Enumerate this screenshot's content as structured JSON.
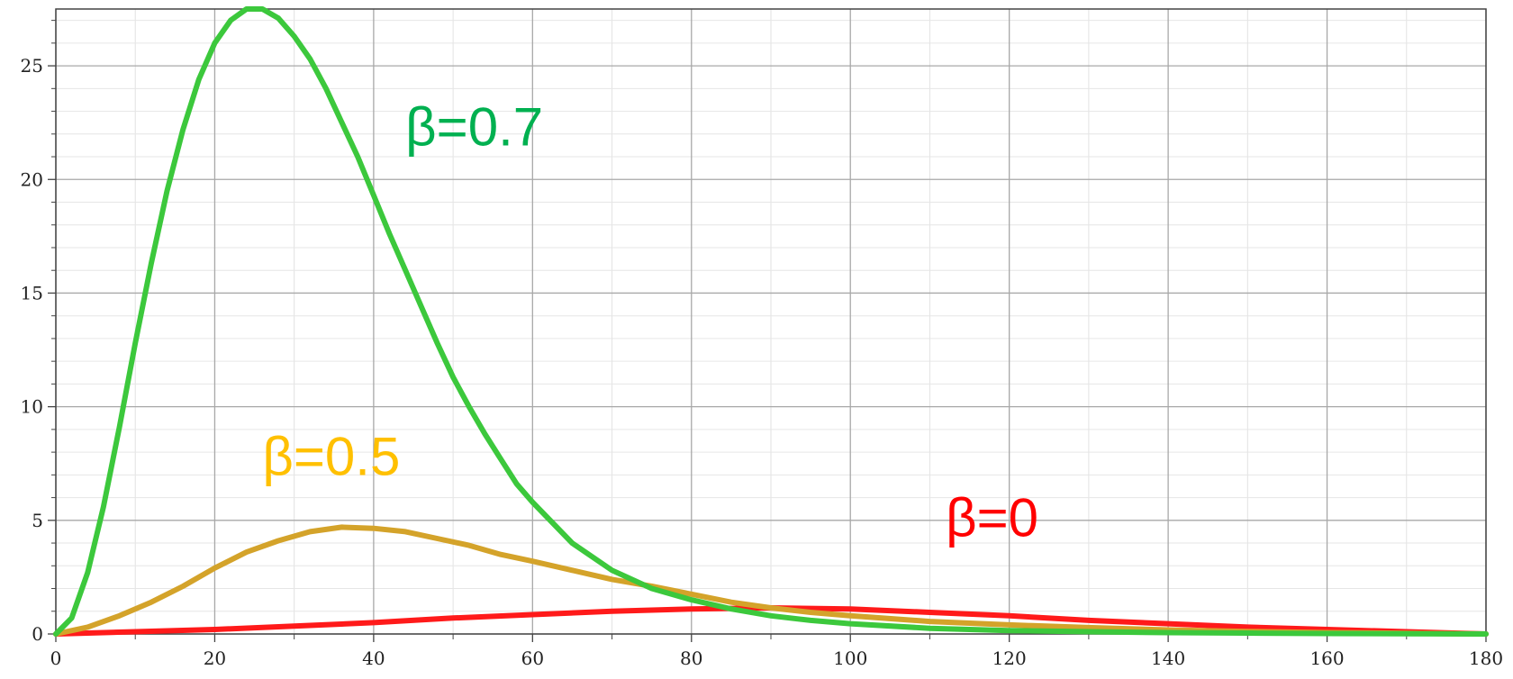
{
  "chart_data": {
    "type": "line",
    "title": "",
    "xlabel": "",
    "ylabel": "",
    "xlim": [
      0,
      180
    ],
    "ylim": [
      0,
      27.5
    ],
    "x_ticks": [
      0,
      20,
      40,
      60,
      80,
      100,
      120,
      140,
      160,
      180
    ],
    "y_ticks": [
      0,
      5,
      10,
      15,
      20,
      25
    ],
    "x_tick_labels": [
      "0",
      "20",
      "40",
      "60",
      "80",
      "100",
      "120",
      "140",
      "160",
      "180"
    ],
    "y_tick_labels": [
      "0",
      "5",
      "10",
      "15",
      "20",
      "25"
    ],
    "grid": true,
    "legend": "none",
    "annotations": [
      {
        "text": "β=0.7",
        "x": 44,
        "y": 21.5,
        "color": "#00b050"
      },
      {
        "text": "β=0.5",
        "x": 26,
        "y": 7.0,
        "color": "#ffc000"
      },
      {
        "text": "β=0",
        "x": 112,
        "y": 4.3,
        "color": "#ff0000"
      }
    ],
    "series": [
      {
        "color": "#3cc83c",
        "x": [
          0,
          2,
          4,
          6,
          8,
          10,
          12,
          14,
          16,
          18,
          20,
          22,
          24,
          26,
          28,
          30,
          32,
          34,
          36,
          38,
          40,
          42,
          44,
          46,
          48,
          50,
          52,
          54,
          56,
          58,
          60,
          65,
          70,
          75,
          80,
          85,
          90,
          95,
          100,
          110,
          120,
          130,
          140,
          150,
          160,
          170,
          180
        ],
        "y": [
          0,
          0.7,
          2.7,
          5.6,
          9.1,
          12.8,
          16.3,
          19.5,
          22.2,
          24.4,
          26.0,
          27.0,
          27.5,
          27.5,
          27.1,
          26.3,
          25.3,
          24.0,
          22.5,
          21.0,
          19.3,
          17.6,
          16.0,
          14.4,
          12.8,
          11.3,
          10.0,
          8.8,
          7.7,
          6.6,
          5.8,
          4.0,
          2.8,
          2.0,
          1.5,
          1.1,
          0.8,
          0.6,
          0.45,
          0.25,
          0.15,
          0.1,
          0.06,
          0.04,
          0.02,
          0.01,
          0.0
        ]
      },
      {
        "color": "#d4a32a",
        "x": [
          0,
          4,
          8,
          12,
          16,
          20,
          24,
          28,
          32,
          36,
          40,
          44,
          48,
          52,
          56,
          60,
          65,
          70,
          75,
          80,
          85,
          90,
          95,
          100,
          110,
          120,
          130,
          140,
          150,
          160,
          170,
          180
        ],
        "y": [
          0,
          0.3,
          0.8,
          1.4,
          2.1,
          2.9,
          3.6,
          4.1,
          4.5,
          4.7,
          4.65,
          4.5,
          4.2,
          3.9,
          3.5,
          3.2,
          2.8,
          2.4,
          2.1,
          1.75,
          1.4,
          1.15,
          0.95,
          0.8,
          0.55,
          0.4,
          0.28,
          0.18,
          0.11,
          0.06,
          0.03,
          0.0
        ]
      },
      {
        "color": "#ff1a1a",
        "x": [
          0,
          10,
          20,
          30,
          40,
          50,
          60,
          70,
          80,
          90,
          100,
          110,
          120,
          130,
          140,
          150,
          160,
          170,
          180
        ],
        "y": [
          0,
          0.1,
          0.2,
          0.35,
          0.5,
          0.7,
          0.85,
          1.0,
          1.1,
          1.15,
          1.1,
          0.95,
          0.8,
          0.6,
          0.45,
          0.3,
          0.2,
          0.1,
          0.0
        ]
      }
    ]
  }
}
